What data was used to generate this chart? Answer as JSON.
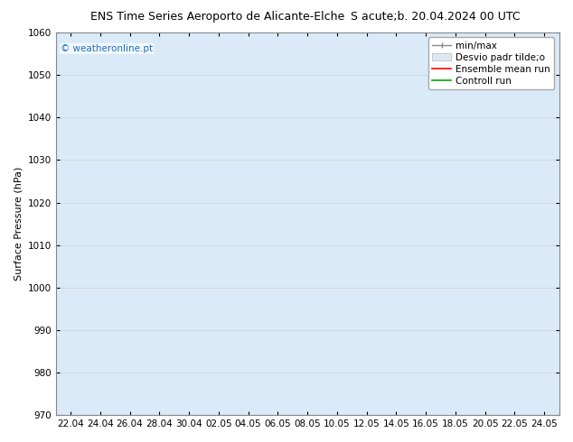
{
  "title_left": "ENS Time Series Aeroporto de Alicante-Elche",
  "title_right": "S acute;b. 20.04.2024 00 UTC",
  "ylabel": "Surface Pressure (hPa)",
  "ylim": [
    970,
    1060
  ],
  "yticks": [
    970,
    980,
    990,
    1000,
    1010,
    1020,
    1030,
    1040,
    1050,
    1060
  ],
  "xtick_labels": [
    "22.04",
    "24.04",
    "26.04",
    "28.04",
    "30.04",
    "02.05",
    "04.05",
    "06.05",
    "08.05",
    "10.05",
    "12.05",
    "14.05",
    "16.05",
    "18.05",
    "20.05",
    "22.05",
    "24.05"
  ],
  "watermark": "© weatheronline.pt",
  "watermark_color": "#1a6fc4",
  "band_color": "#daeaf8",
  "background_color": "#ffffff",
  "plot_bg_color": "#ffffff",
  "legend_items": [
    "min/max",
    "Desvio padr tilde;o",
    "Ensemble mean run",
    "Controll run"
  ],
  "legend_colors_line": [
    "#888888",
    "#bbccdd",
    "#ff0000",
    "#00aa00"
  ],
  "title_fontsize": 9,
  "axis_label_fontsize": 8,
  "tick_fontsize": 7.5,
  "legend_fontsize": 7.5,
  "watermark_fontsize": 7.5
}
